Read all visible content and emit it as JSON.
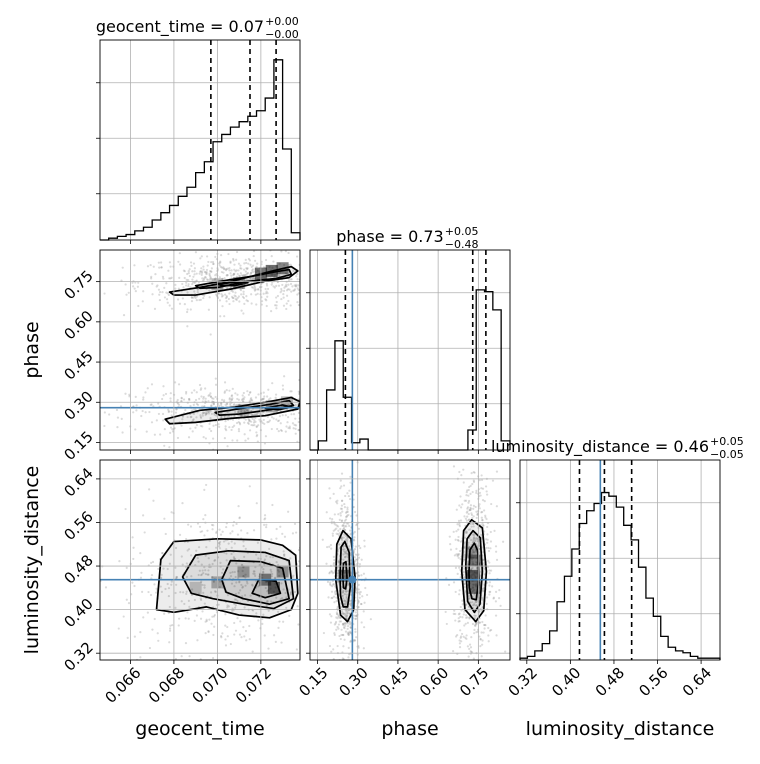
{
  "chart_data": {
    "type": "corner",
    "parameters": [
      "geocent_time",
      "phase",
      "luminosity_distance"
    ],
    "axis_labels": [
      "geocent_time",
      "phase",
      "luminosity_distance"
    ],
    "ranges": {
      "geocent_time": [
        0.0646,
        0.0738
      ],
      "phase": [
        0.122,
        0.868
      ],
      "luminosity_distance": [
        0.3075,
        0.6747
      ]
    },
    "ticks": {
      "geocent_time": {
        "values": [
          0.066,
          0.068,
          0.07,
          0.072
        ],
        "labels": [
          "0.066",
          "0.068",
          "0.070",
          "0.072"
        ]
      },
      "phase": {
        "values": [
          0.15,
          0.3,
          0.45,
          0.6,
          0.75
        ],
        "labels": [
          "0.15",
          "0.30",
          "0.45",
          "0.60",
          "0.75"
        ]
      },
      "luminosity_distance": {
        "values": [
          0.32,
          0.4,
          0.48,
          0.56,
          0.64
        ],
        "labels": [
          "0.32",
          "0.40",
          "0.48",
          "0.56",
          "0.64"
        ]
      }
    },
    "titles": [
      {
        "param": "geocent_time",
        "label": "geocent_time = 0.07",
        "plus": "+0.00",
        "minus": "−0.00"
      },
      {
        "param": "phase",
        "label": "phase = 0.73",
        "plus": "+0.05",
        "minus": "−0.48"
      },
      {
        "param": "luminosity_distance",
        "label": "luminosity_distance = 0.46",
        "plus": "+0.05",
        "minus": "−0.05"
      }
    ],
    "truths": {
      "geocent_time": null,
      "phase": 0.28,
      "luminosity_distance": 0.455
    },
    "quantiles": {
      "geocent_time": [
        0.0697,
        0.0715,
        0.0727
      ],
      "phase": [
        0.254,
        0.729,
        0.778
      ],
      "luminosity_distance": [
        0.4167,
        0.4625,
        0.5125
      ]
    },
    "histograms": {
      "geocent_time": {
        "edges": [
          0.0646,
          0.065,
          0.0654,
          0.0658,
          0.0662,
          0.0666,
          0.067,
          0.0674,
          0.0678,
          0.0682,
          0.0686,
          0.069,
          0.0694,
          0.0698,
          0.0702,
          0.0706,
          0.071,
          0.0714,
          0.0718,
          0.0722,
          0.0726,
          0.073,
          0.0734,
          0.0738
        ],
        "counts": [
          0,
          0.01,
          0.02,
          0.03,
          0.05,
          0.07,
          0.11,
          0.15,
          0.19,
          0.24,
          0.29,
          0.37,
          0.43,
          0.54,
          0.58,
          0.62,
          0.65,
          0.68,
          0.71,
          0.78,
          0.99,
          0.5,
          0.04
        ]
      },
      "phase": {
        "edges": [
          0.122,
          0.153,
          0.184,
          0.215,
          0.246,
          0.277,
          0.308,
          0.339,
          0.37,
          0.401,
          0.432,
          0.463,
          0.494,
          0.525,
          0.556,
          0.587,
          0.618,
          0.649,
          0.68,
          0.711,
          0.742,
          0.773,
          0.804,
          0.835,
          0.868
        ],
        "counts": [
          0,
          0.05,
          0.33,
          0.6,
          0.29,
          0.04,
          0.06,
          0,
          0,
          0,
          0,
          0,
          0,
          0,
          0,
          0,
          0,
          0,
          0,
          0.11,
          0.88,
          0.87,
          0.77,
          0.05
        ]
      },
      "luminosity_distance": {
        "edges": [
          0.3075,
          0.3211,
          0.3347,
          0.3483,
          0.3619,
          0.3755,
          0.3891,
          0.4027,
          0.4163,
          0.4299,
          0.4435,
          0.4571,
          0.4707,
          0.4843,
          0.4979,
          0.5115,
          0.5251,
          0.5387,
          0.5523,
          0.5659,
          0.5795,
          0.5931,
          0.6067,
          0.6203,
          0.6339,
          0.6475,
          0.6611,
          0.6747
        ],
        "counts": [
          0.01,
          0.02,
          0.05,
          0.09,
          0.16,
          0.32,
          0.46,
          0.61,
          0.75,
          0.82,
          0.86,
          0.92,
          0.9,
          0.84,
          0.74,
          0.66,
          0.51,
          0.34,
          0.24,
          0.13,
          0.07,
          0.05,
          0.04,
          0.02,
          0.01,
          0.01,
          0.01
        ]
      }
    },
    "contours_2d": [
      {
        "x": "geocent_time",
        "y": "phase",
        "levels": [
          [
            [
              0.0678,
              0.711
            ],
            [
              0.0693,
              0.73
            ],
            [
              0.0706,
              0.75
            ],
            [
              0.0718,
              0.775
            ],
            [
              0.0728,
              0.795
            ],
            [
              0.0734,
              0.806
            ],
            [
              0.0737,
              0.79
            ],
            [
              0.0733,
              0.765
            ],
            [
              0.0722,
              0.752
            ],
            [
              0.0706,
              0.722
            ],
            [
              0.069,
              0.7
            ],
            [
              0.068,
              0.7
            ]
          ],
          [
            [
              0.069,
              0.735
            ],
            [
              0.0702,
              0.752
            ],
            [
              0.0716,
              0.77
            ],
            [
              0.0727,
              0.787
            ],
            [
              0.0733,
              0.795
            ],
            [
              0.0734,
              0.777
            ],
            [
              0.0727,
              0.762
            ],
            [
              0.0713,
              0.75
            ],
            [
              0.07,
              0.728
            ],
            [
              0.0692,
              0.725
            ]
          ],
          [
            [
              0.07,
              0.74
            ],
            [
              0.0708,
              0.748
            ],
            [
              0.0714,
              0.746
            ],
            [
              0.0708,
              0.735
            ],
            [
              0.0702,
              0.736
            ]
          ],
          [
            [
              0.0676,
              0.237
            ],
            [
              0.0692,
              0.27
            ],
            [
              0.0708,
              0.282
            ],
            [
              0.0722,
              0.3
            ],
            [
              0.0734,
              0.318
            ],
            [
              0.0738,
              0.302
            ],
            [
              0.0737,
              0.275
            ],
            [
              0.0722,
              0.25
            ],
            [
              0.0706,
              0.24
            ],
            [
              0.069,
              0.225
            ],
            [
              0.0678,
              0.22
            ]
          ],
          [
            [
              0.0699,
              0.262
            ],
            [
              0.0712,
              0.278
            ],
            [
              0.0724,
              0.292
            ],
            [
              0.0733,
              0.306
            ],
            [
              0.0735,
              0.288
            ],
            [
              0.0724,
              0.272
            ],
            [
              0.071,
              0.256
            ],
            [
              0.0701,
              0.252
            ]
          ],
          [
            [
              0.0722,
              0.278
            ],
            [
              0.073,
              0.29
            ],
            [
              0.0734,
              0.282
            ],
            [
              0.0728,
              0.272
            ]
          ]
        ],
        "dense": [
          [
            0.0725,
            0.79,
            0.95
          ],
          [
            0.072,
            0.78,
            0.9
          ],
          [
            0.073,
            0.8,
            0.8
          ],
          [
            0.071,
            0.745,
            0.55
          ],
          [
            0.07,
            0.74,
            0.45
          ],
          [
            0.0725,
            0.285,
            0.5
          ],
          [
            0.0712,
            0.272,
            0.4
          ],
          [
            0.0732,
            0.3,
            0.4
          ]
        ]
      },
      {
        "x": "geocent_time",
        "y": "luminosity_distance",
        "levels": [
          [
            [
              0.0672,
              0.4
            ],
            [
              0.0674,
              0.492
            ],
            [
              0.068,
              0.525
            ],
            [
              0.07,
              0.53
            ],
            [
              0.072,
              0.528
            ],
            [
              0.073,
              0.518
            ],
            [
              0.0736,
              0.5
            ],
            [
              0.0737,
              0.43
            ],
            [
              0.0734,
              0.4
            ],
            [
              0.0724,
              0.385
            ],
            [
              0.071,
              0.39
            ],
            [
              0.0695,
              0.405
            ],
            [
              0.068,
              0.395
            ]
          ],
          [
            [
              0.0684,
              0.46
            ],
            [
              0.069,
              0.5
            ],
            [
              0.0705,
              0.508
            ],
            [
              0.0722,
              0.505
            ],
            [
              0.0733,
              0.49
            ],
            [
              0.0735,
              0.42
            ],
            [
              0.0726,
              0.402
            ],
            [
              0.0712,
              0.41
            ],
            [
              0.0698,
              0.42
            ],
            [
              0.0688,
              0.43
            ]
          ],
          [
            [
              0.0702,
              0.455
            ],
            [
              0.0706,
              0.49
            ],
            [
              0.072,
              0.488
            ],
            [
              0.073,
              0.476
            ],
            [
              0.0733,
              0.42
            ],
            [
              0.0724,
              0.41
            ],
            [
              0.0712,
              0.42
            ],
            [
              0.0704,
              0.432
            ]
          ],
          [
            [
              0.0716,
              0.43
            ],
            [
              0.0719,
              0.455
            ],
            [
              0.0727,
              0.452
            ],
            [
              0.0729,
              0.43
            ],
            [
              0.0722,
              0.422
            ]
          ]
        ],
        "dense": [
          [
            0.0726,
            0.44,
            0.95
          ],
          [
            0.0722,
            0.455,
            0.75
          ],
          [
            0.0712,
            0.47,
            0.5
          ],
          [
            0.07,
            0.45,
            0.45
          ],
          [
            0.073,
            0.47,
            0.6
          ],
          [
            0.069,
            0.44,
            0.3
          ]
        ]
      },
      {
        "x": "phase",
        "y": "luminosity_distance",
        "levels": [
          [
            [
              0.218,
              0.455
            ],
            [
              0.222,
              0.52
            ],
            [
              0.245,
              0.545
            ],
            [
              0.275,
              0.53
            ],
            [
              0.29,
              0.46
            ],
            [
              0.285,
              0.4
            ],
            [
              0.262,
              0.378
            ],
            [
              0.236,
              0.39
            ]
          ],
          [
            [
              0.234,
              0.46
            ],
            [
              0.238,
              0.515
            ],
            [
              0.252,
              0.525
            ],
            [
              0.268,
              0.505
            ],
            [
              0.272,
              0.44
            ],
            [
              0.262,
              0.405
            ],
            [
              0.246,
              0.405
            ],
            [
              0.236,
              0.425
            ]
          ],
          [
            [
              0.244,
              0.465
            ],
            [
              0.247,
              0.485
            ],
            [
              0.256,
              0.488
            ],
            [
              0.26,
              0.458
            ],
            [
              0.255,
              0.438
            ],
            [
              0.247,
              0.44
            ]
          ],
          [
            [
              0.688,
              0.47
            ],
            [
              0.695,
              0.545
            ],
            [
              0.725,
              0.565
            ],
            [
              0.765,
              0.55
            ],
            [
              0.78,
              0.47
            ],
            [
              0.77,
              0.398
            ],
            [
              0.74,
              0.378
            ],
            [
              0.7,
              0.4
            ]
          ],
          [
            [
              0.703,
              0.48
            ],
            [
              0.708,
              0.53
            ],
            [
              0.73,
              0.545
            ],
            [
              0.757,
              0.532
            ],
            [
              0.765,
              0.47
            ],
            [
              0.756,
              0.41
            ],
            [
              0.735,
              0.395
            ],
            [
              0.71,
              0.415
            ]
          ],
          [
            [
              0.715,
              0.47
            ],
            [
              0.719,
              0.51
            ],
            [
              0.735,
              0.522
            ],
            [
              0.748,
              0.508
            ],
            [
              0.752,
              0.455
            ],
            [
              0.742,
              0.418
            ],
            [
              0.726,
              0.42
            ],
            [
              0.716,
              0.44
            ]
          ]
        ],
        "dense": [
          [
            0.25,
            0.462,
            0.7
          ],
          [
            0.73,
            0.462,
            0.95
          ],
          [
            0.735,
            0.44,
            0.8
          ],
          [
            0.74,
            0.49,
            0.7
          ],
          [
            0.725,
            0.505,
            0.45
          ]
        ]
      }
    ],
    "colors": {
      "truth": "#4682b4",
      "contour": "#000000",
      "scatter": "#999999",
      "grid": "#b0b0b0"
    },
    "grid": true
  }
}
